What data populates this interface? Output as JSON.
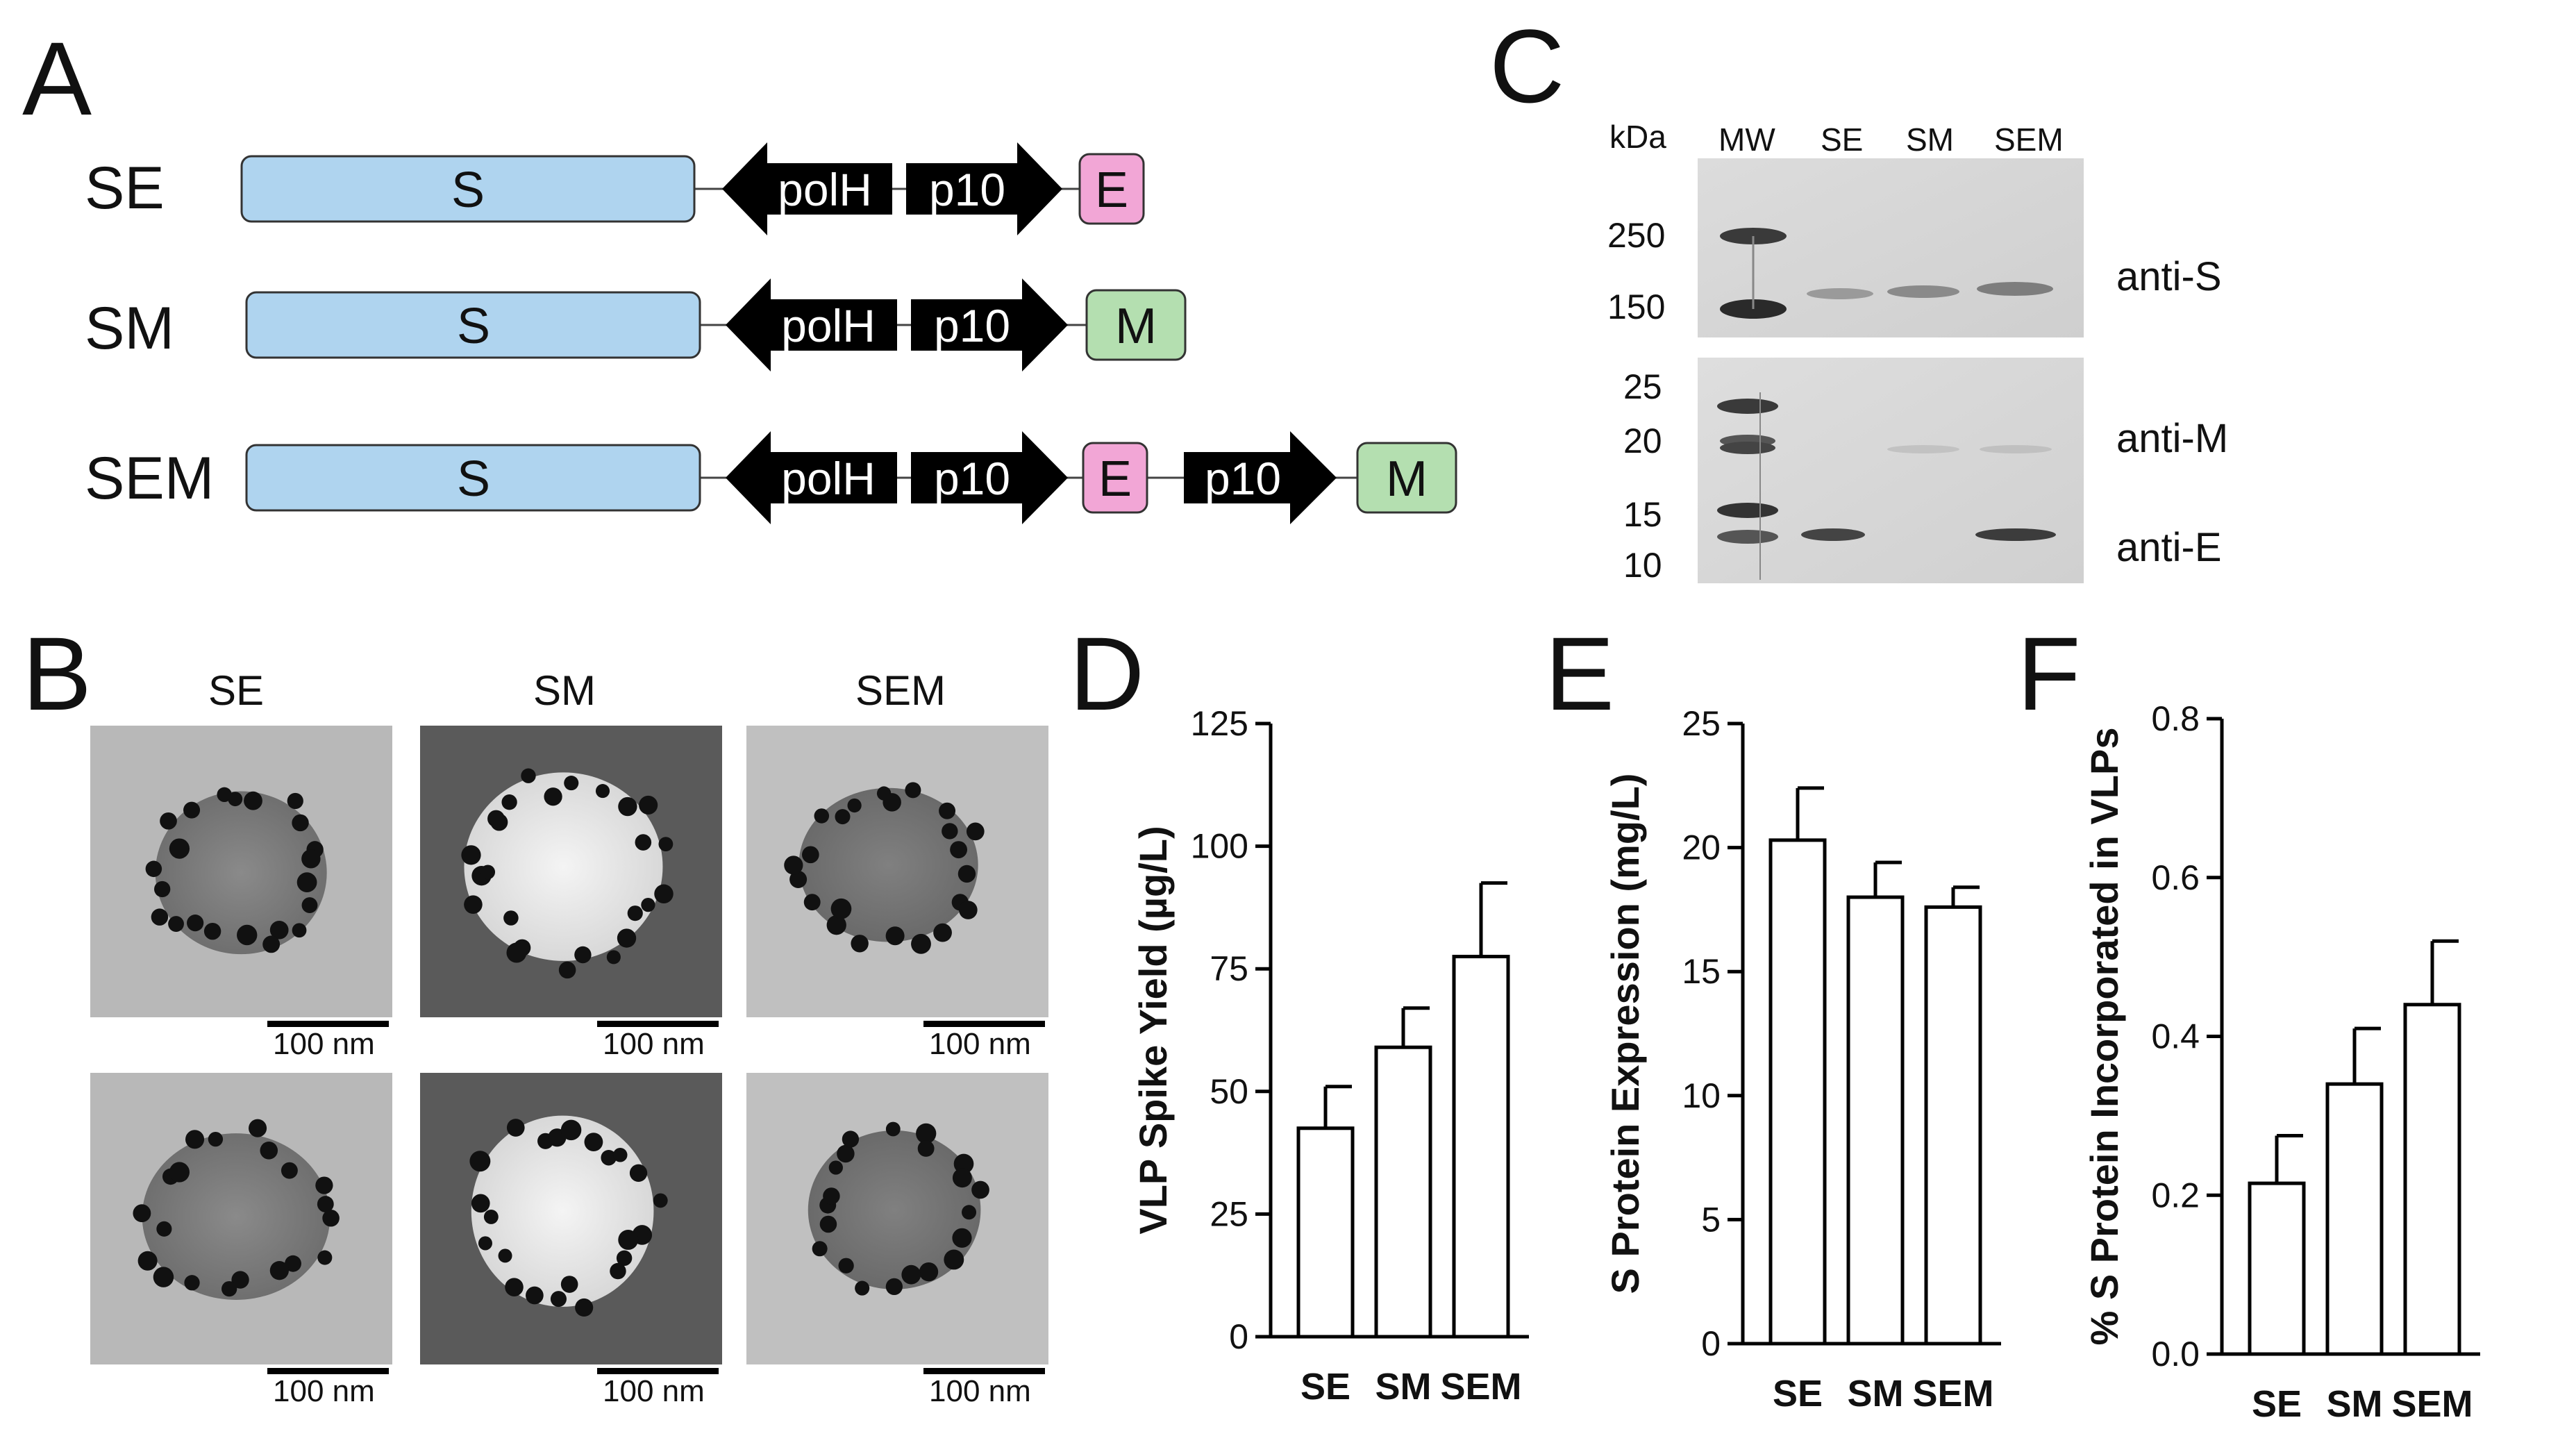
{
  "panels": {
    "A": "A",
    "B": "B",
    "C": "C",
    "D": "D",
    "E": "E",
    "F": "F"
  },
  "constructs": {
    "rows": [
      {
        "name": "SE",
        "s_label": "S",
        "promoter1": "polH",
        "promoter2": "p10",
        "gene2": "E",
        "extra_promoter": "",
        "gene3": ""
      },
      {
        "name": "SM",
        "s_label": "S",
        "promoter1": "polH",
        "promoter2": "p10",
        "gene2": "M",
        "extra_promoter": "",
        "gene3": ""
      },
      {
        "name": "SEM",
        "s_label": "S",
        "promoter1": "polH",
        "promoter2": "p10",
        "gene2": "E",
        "extra_promoter": "p10",
        "gene3": "M"
      }
    ],
    "colors": {
      "S": "#afd4ef",
      "E": "#f2a6d6",
      "M": "#b4dfb0",
      "promoter": "#000000"
    }
  },
  "tem": {
    "columns": [
      "SE",
      "SM",
      "SEM"
    ],
    "scalebar": "100 nm"
  },
  "blot": {
    "kda_label": "kDa",
    "lanes": [
      "MW",
      "SE",
      "SM",
      "SEM"
    ],
    "markers_top": [
      "250",
      "150"
    ],
    "markers_bottom": [
      "25",
      "20",
      "15",
      "10"
    ],
    "antibodies": [
      "anti-S",
      "anti-M",
      "anti-E"
    ]
  },
  "chart_data": [
    {
      "panel": "D",
      "type": "bar",
      "categories": [
        "SE",
        "SM",
        "SEM"
      ],
      "values": [
        42.5,
        59,
        77.5
      ],
      "errors": [
        8.5,
        8,
        15
      ],
      "ylabel": "VLP Spike Yield (µg/L)",
      "ylim": [
        0,
        125
      ],
      "yticks": [
        "0",
        "25",
        "50",
        "75",
        "100",
        "125"
      ]
    },
    {
      "panel": "E",
      "type": "bar",
      "categories": [
        "SE",
        "SM",
        "SEM"
      ],
      "values": [
        20.3,
        18,
        17.6
      ],
      "errors": [
        2.1,
        1.4,
        0.8
      ],
      "ylabel": "S Protein Expression (mg/L)",
      "ylim": [
        0,
        25
      ],
      "yticks": [
        "0",
        "5",
        "10",
        "15",
        "20",
        "25"
      ]
    },
    {
      "panel": "F",
      "type": "bar",
      "categories": [
        "SE",
        "SM",
        "SEM"
      ],
      "values": [
        0.215,
        0.34,
        0.44
      ],
      "errors": [
        0.06,
        0.07,
        0.08
      ],
      "ylabel": "% S Protein Incorporated in VLPs",
      "ylim": [
        0,
        0.8
      ],
      "yticks": [
        "0.0",
        "0.2",
        "0.4",
        "0.6",
        "0.8"
      ]
    }
  ]
}
